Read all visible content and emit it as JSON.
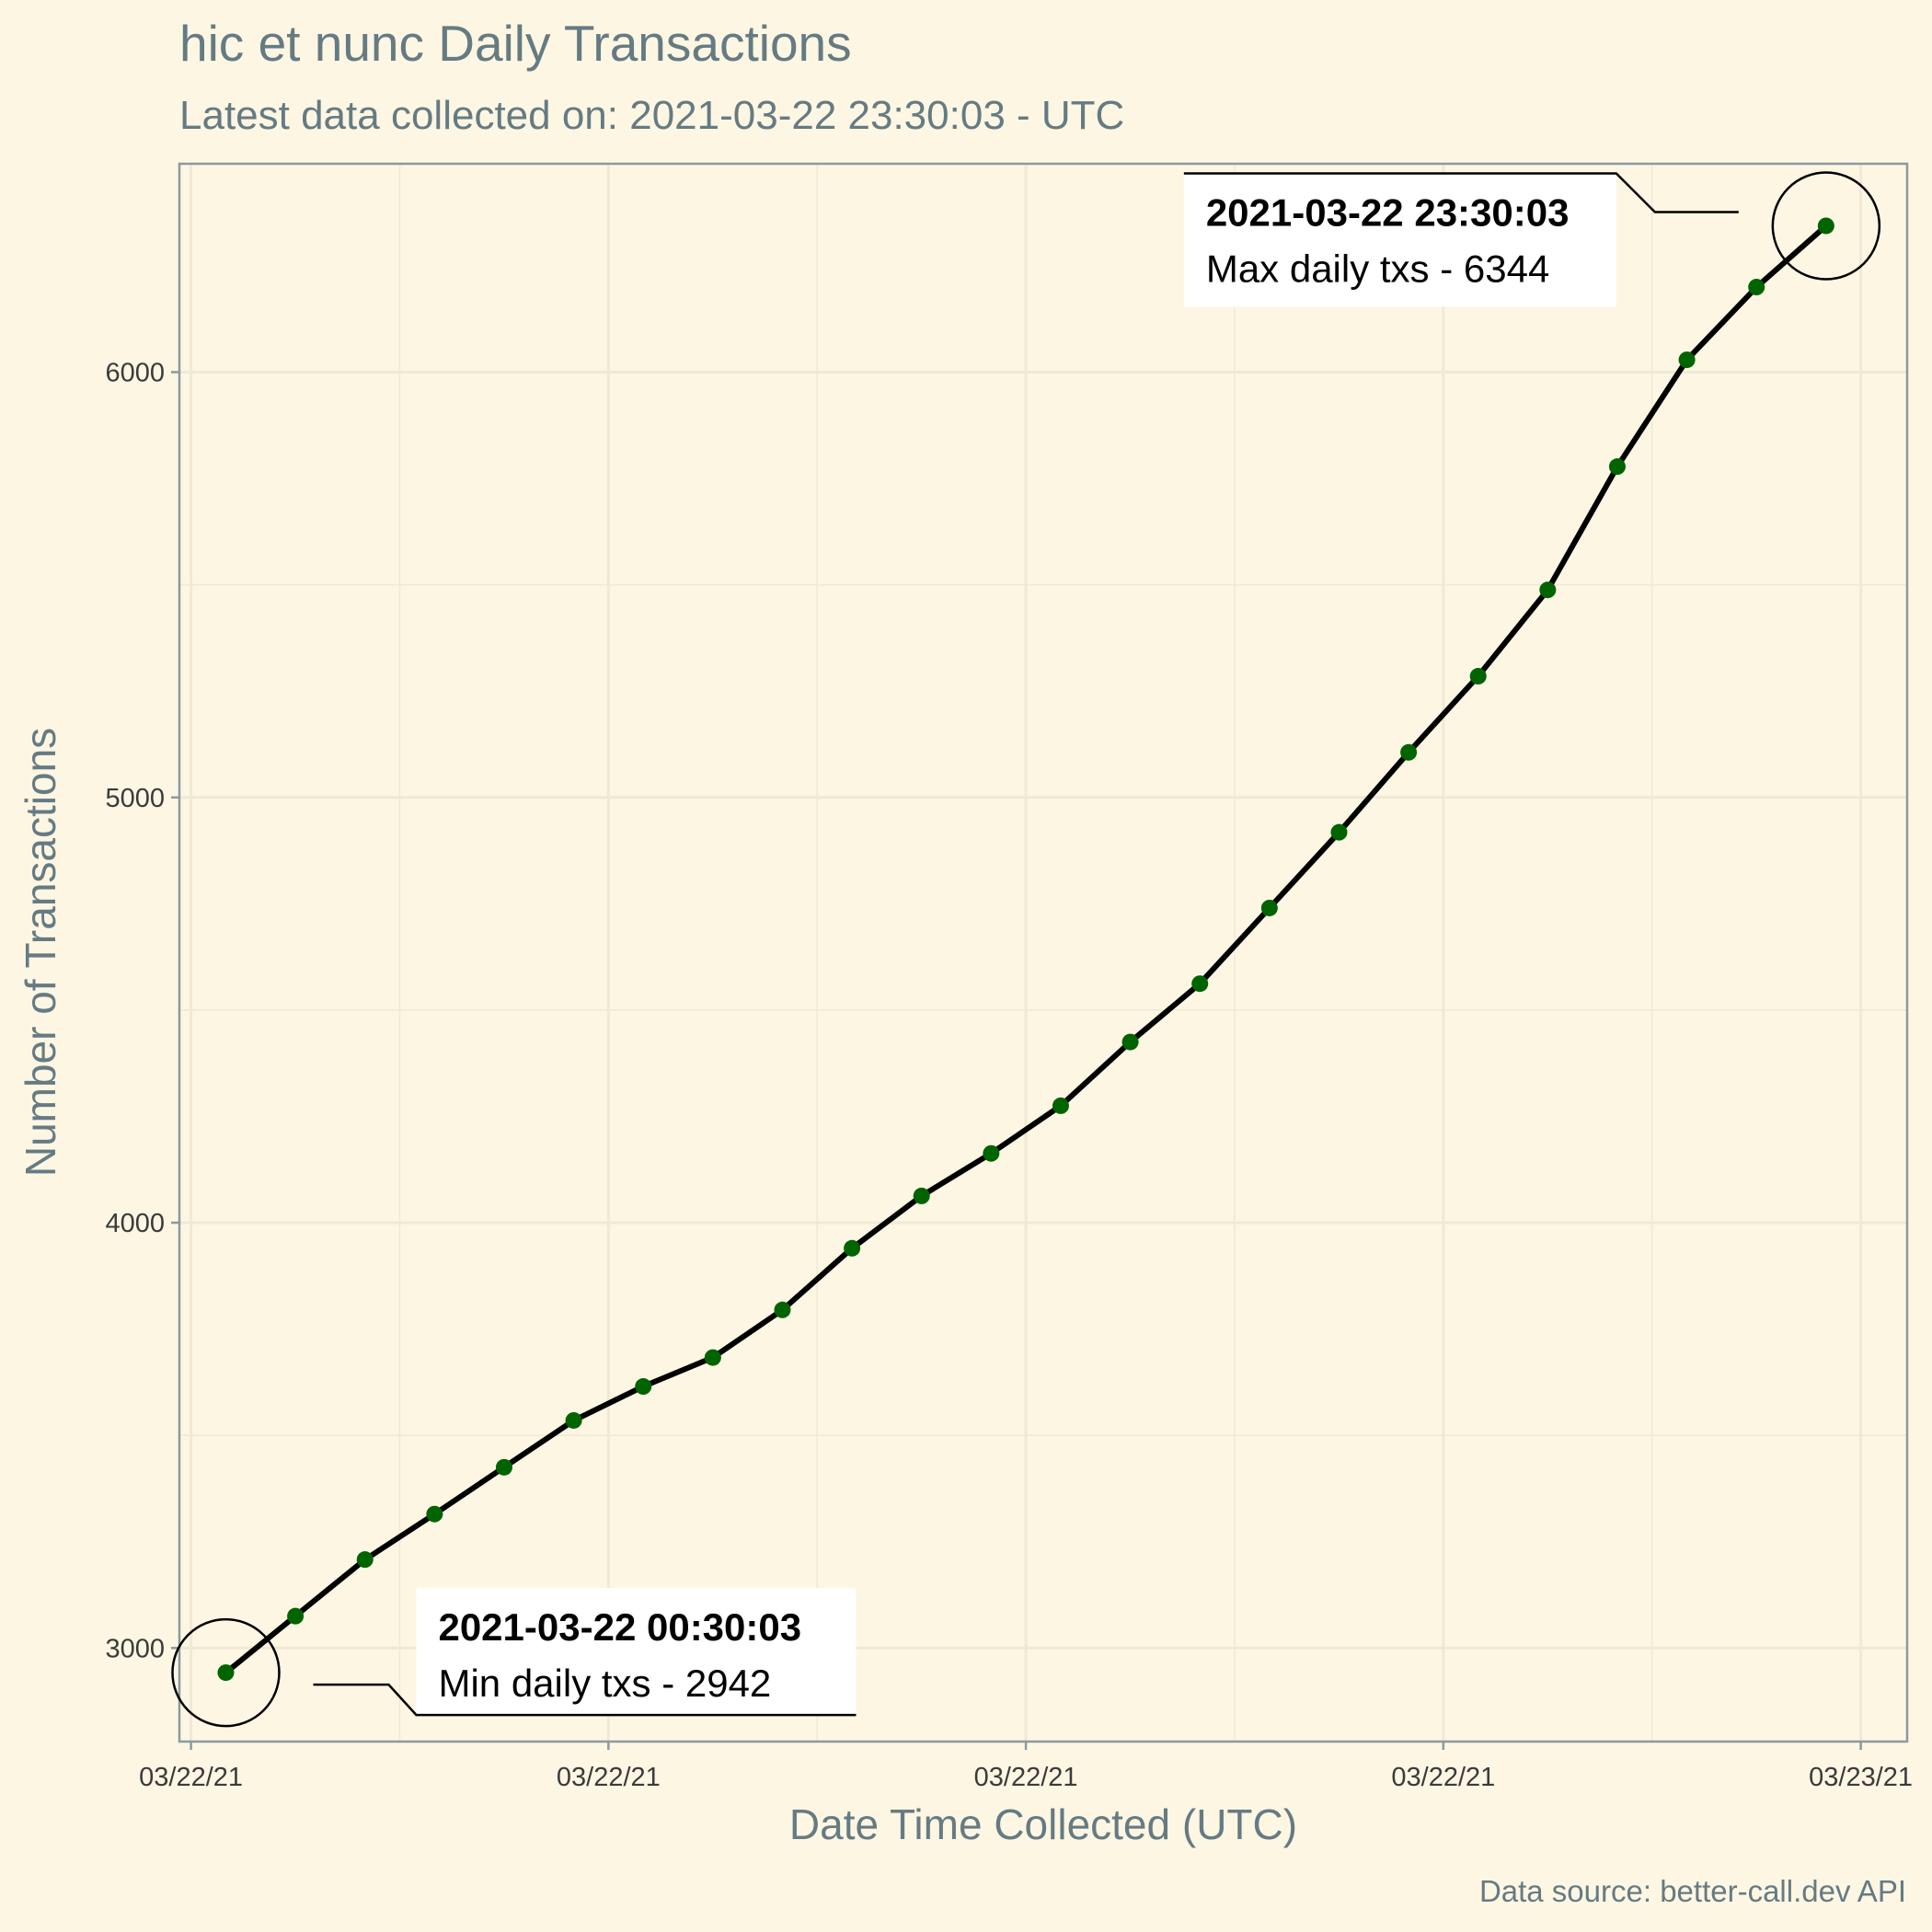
{
  "chart_data": {
    "type": "line",
    "title": "hic et nunc Daily Transactions",
    "subtitle": "Latest data collected on: 2021-03-22 23:30:03  - UTC",
    "xlabel": "Date Time Collected (UTC)",
    "ylabel": "Number of Transactions",
    "caption": "Data source: better-call.dev API",
    "x": [
      "2021-03-22 00:30:03",
      "2021-03-22 01:30:03",
      "2021-03-22 02:30:03",
      "2021-03-22 03:30:03",
      "2021-03-22 04:30:03",
      "2021-03-22 05:30:03",
      "2021-03-22 06:30:03",
      "2021-03-22 07:30:03",
      "2021-03-22 08:30:03",
      "2021-03-22 09:30:03",
      "2021-03-22 10:30:03",
      "2021-03-22 11:30:03",
      "2021-03-22 12:30:03",
      "2021-03-22 13:30:03",
      "2021-03-22 14:30:03",
      "2021-03-22 15:30:03",
      "2021-03-22 16:30:03",
      "2021-03-22 17:30:03",
      "2021-03-22 18:30:03",
      "2021-03-22 19:30:03",
      "2021-03-22 20:30:03",
      "2021-03-22 21:30:03",
      "2021-03-22 22:30:03",
      "2021-03-22 23:30:03"
    ],
    "values": [
      2942,
      3075,
      3208,
      3315,
      3425,
      3535,
      3615,
      3683,
      3795,
      3940,
      4063,
      4163,
      4275,
      4425,
      4562,
      4740,
      4918,
      5106,
      5285,
      5488,
      5778,
      6029,
      6200,
      6344
    ],
    "ylim": [
      2780,
      6490
    ],
    "xlim": [
      "2021-03-21 23:50:00",
      "2021-03-23 00:40:00"
    ],
    "yticks": [
      3000,
      4000,
      5000,
      6000
    ],
    "xticks": [
      {
        "t": "2021-03-22 00:00:00",
        "label": "03/22/21"
      },
      {
        "t": "2021-03-22 06:00:00",
        "label": "03/22/21"
      },
      {
        "t": "2021-03-22 12:00:00",
        "label": "03/22/21"
      },
      {
        "t": "2021-03-22 18:00:00",
        "label": "03/22/21"
      },
      {
        "t": "2021-03-23 00:00:00",
        "label": "03/23/21"
      }
    ],
    "grid": true,
    "colors": {
      "line": "#000000",
      "points": "#006400",
      "background": "#fdf6e3",
      "grid": "#efe9d6",
      "panel_border": "#8a9aa0"
    },
    "annotations": [
      {
        "kind": "min",
        "timestamp": "2021-03-22 00:30:03",
        "label": "Min daily txs - 2942"
      },
      {
        "kind": "max",
        "timestamp": "2021-03-22 23:30:03",
        "label": "Max daily txs - 6344"
      }
    ]
  }
}
